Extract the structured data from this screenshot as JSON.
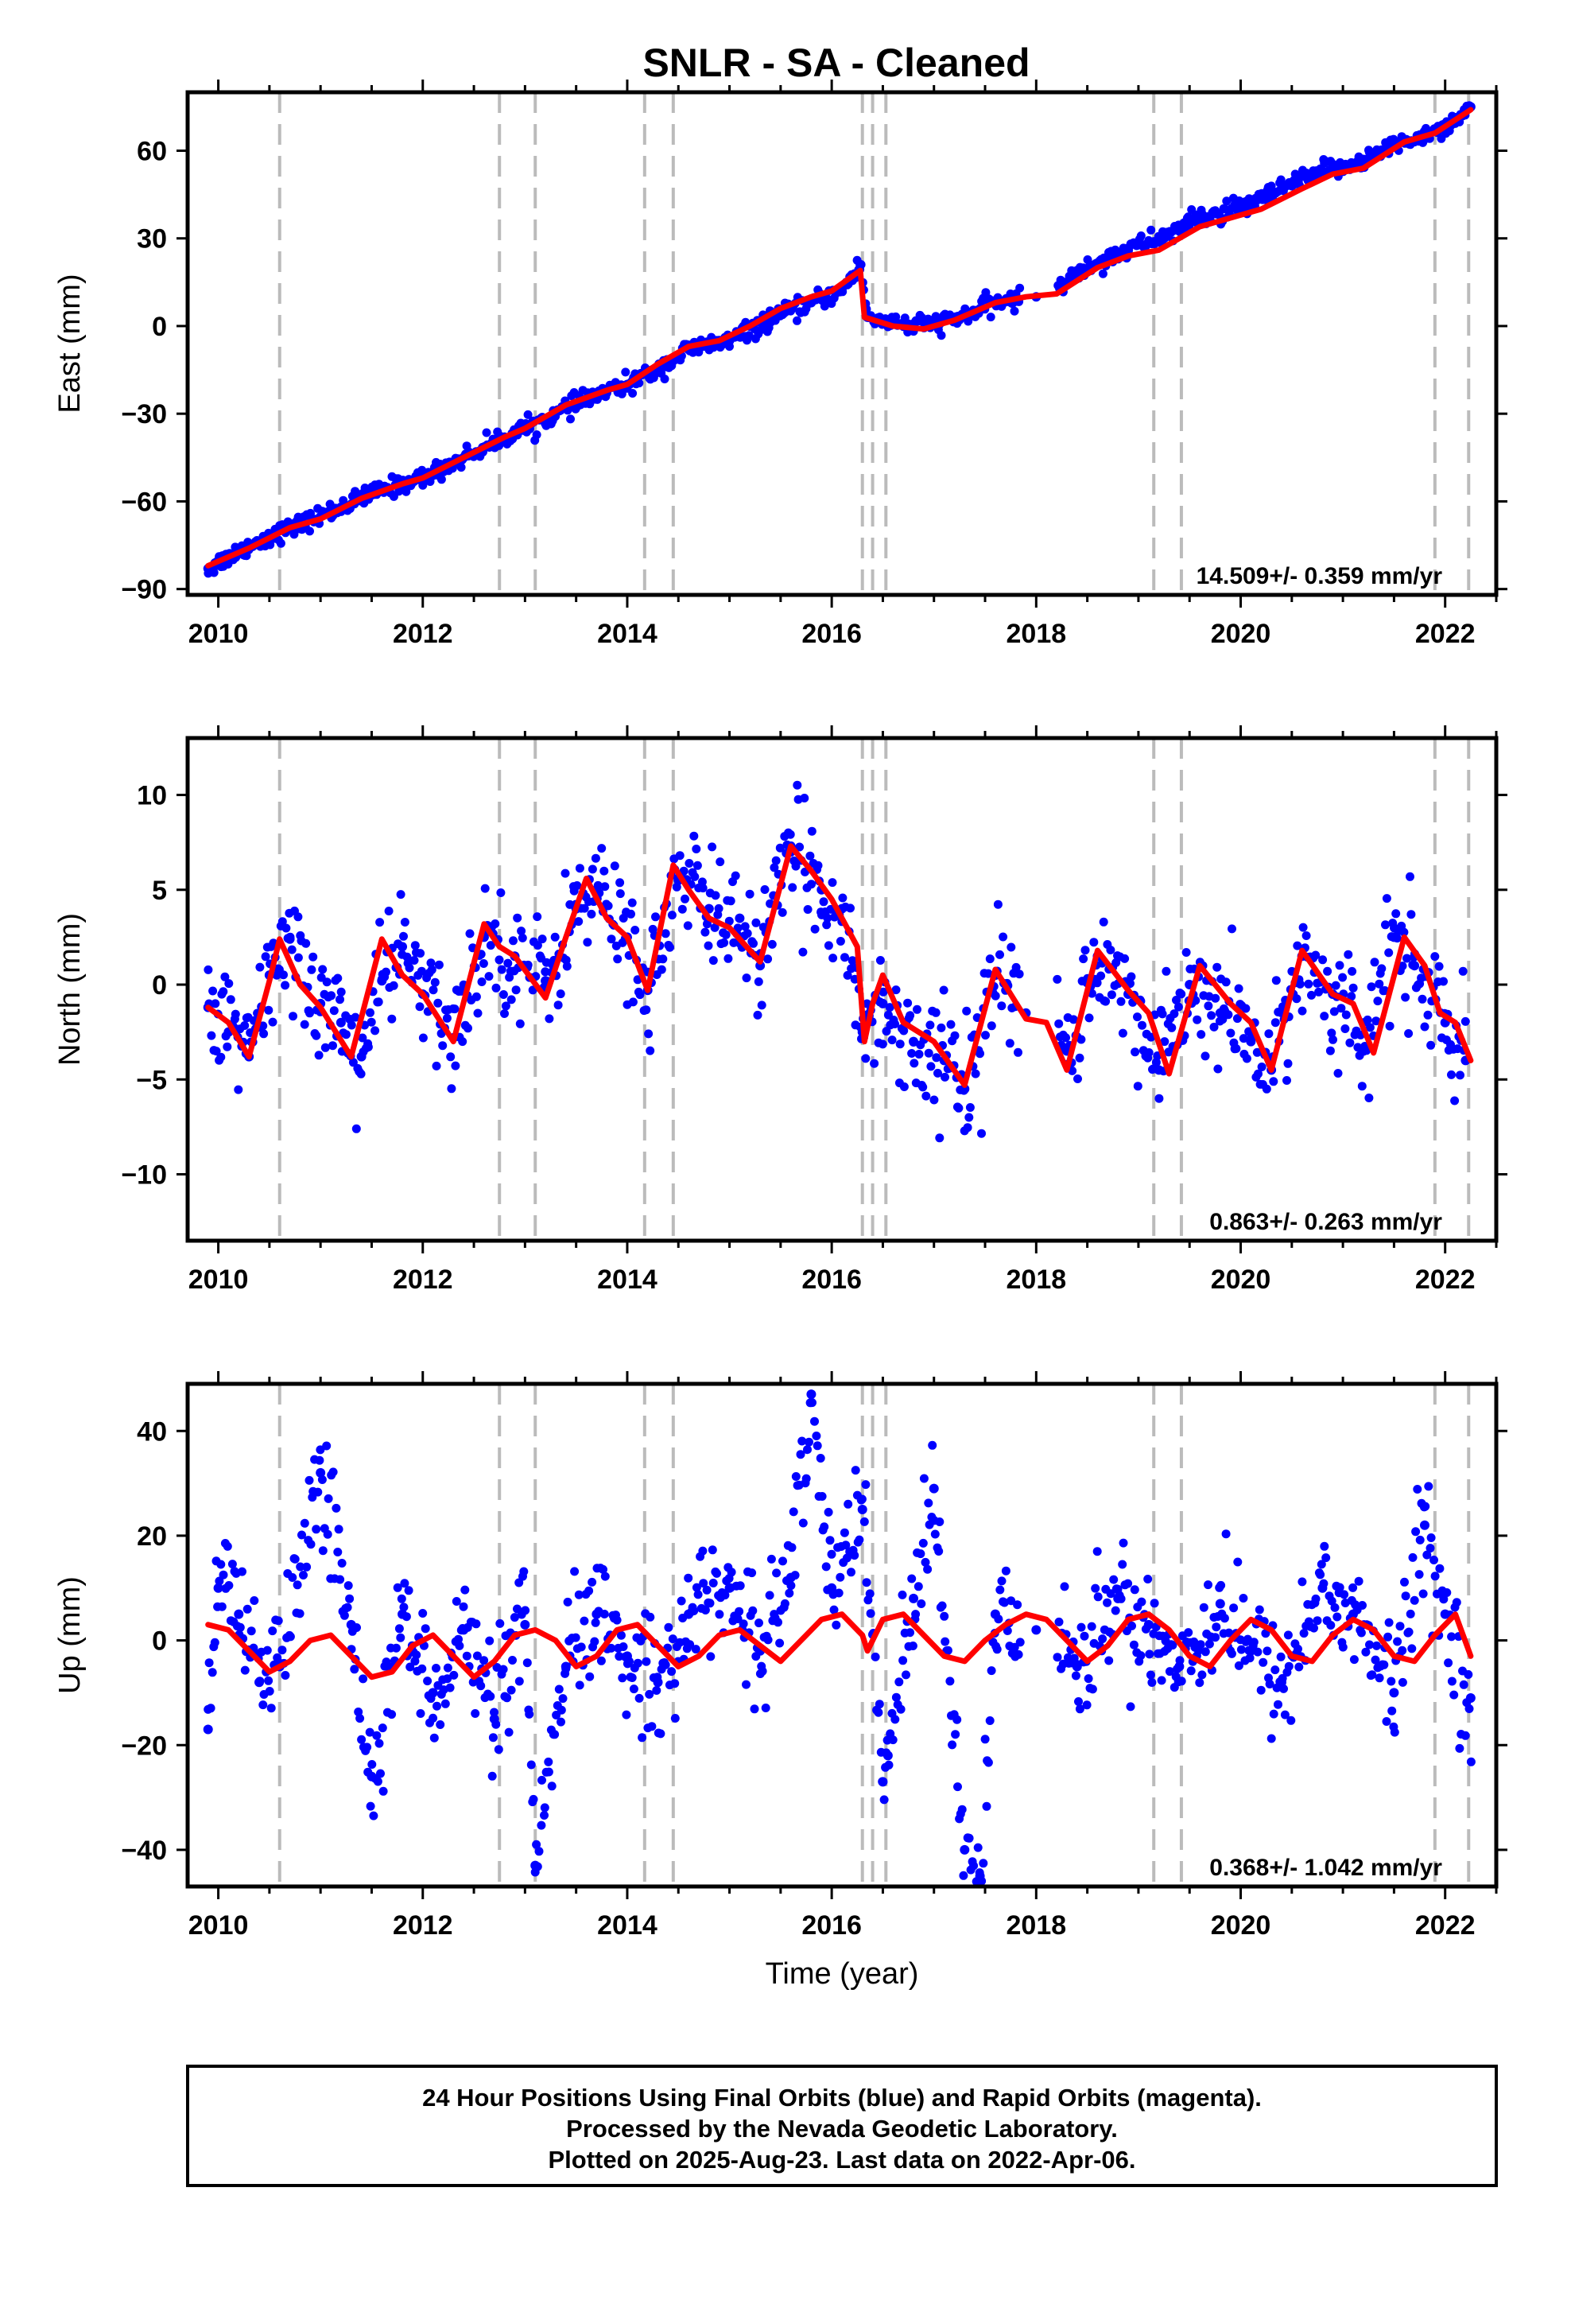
{
  "title": "SNLR  - SA - Cleaned",
  "colors": {
    "final_orbits": "#0000ff",
    "model": "#ff0000",
    "event_lines": "#bbbbbb",
    "frame": "#000000"
  },
  "chart_data": [
    {
      "type": "scatter",
      "name": "east",
      "ylabel": "East (mm)",
      "xlabel": "",
      "xlim": [
        2009.7,
        2022.5
      ],
      "ylim": [
        -92,
        80
      ],
      "xticks": [
        2010,
        2012,
        2014,
        2016,
        2018,
        2020,
        2022
      ],
      "xtick_labels": [
        "2010",
        "2012",
        "2014",
        "2016",
        "2018",
        "2020",
        "2022"
      ],
      "yticks": [
        -90,
        -60,
        -30,
        0,
        30,
        60
      ],
      "ytick_labels": [
        "−90",
        "−60",
        "−30",
        "0",
        "30",
        "60"
      ],
      "rate_label": "14.509+/- 0.359 mm/yr",
      "event_lines": [
        2010.6,
        2012.75,
        2013.1,
        2014.17,
        2014.45,
        2016.3,
        2016.4,
        2016.53,
        2019.15,
        2019.42,
        2021.9,
        2022.23
      ],
      "series": [
        {
          "name": "",
          "color": "#0000ff",
          "x": [
            2009.9,
            2010.2,
            2010.5,
            2010.8,
            2011.2,
            2011.6,
            2012.0,
            2012.4,
            2012.8,
            2013.2,
            2013.6,
            2014.0,
            2014.3,
            2014.6,
            2015.0,
            2015.4,
            2015.8,
            2016.1,
            2016.28,
            2016.35,
            2016.8,
            2017.2,
            2017.6,
            2018.0,
            2018.4,
            2018.8,
            2019.2,
            2019.6,
            2020.0,
            2020.4,
            2020.8,
            2021.2,
            2021.6,
            2022.0,
            2022.25
          ],
          "y": [
            -83,
            -77,
            -72,
            -68,
            -62,
            -56,
            -52,
            -45,
            -38,
            -32,
            -25,
            -20,
            -15,
            -8,
            -5,
            2,
            8,
            12,
            21,
            3,
            0,
            2,
            8,
            10,
            18,
            25,
            30,
            37,
            40,
            47,
            53,
            57,
            63,
            68,
            75
          ]
        },
        {
          "name": "",
          "color": "#ff0000",
          "x": [
            2009.9,
            2010.3,
            2010.7,
            2011.0,
            2011.4,
            2011.8,
            2012.0,
            2012.4,
            2012.8,
            2013.0,
            2013.4,
            2013.8,
            2014.0,
            2014.3,
            2014.6,
            2014.9,
            2015.2,
            2015.5,
            2015.8,
            2016.0,
            2016.28,
            2016.32,
            2016.6,
            2016.9,
            2017.2,
            2017.6,
            2017.9,
            2018.2,
            2018.6,
            2018.9,
            2019.2,
            2019.6,
            2019.9,
            2020.2,
            2020.6,
            2020.9,
            2021.2,
            2021.6,
            2021.9,
            2022.25
          ],
          "y": [
            -82,
            -76,
            -69,
            -66,
            -59,
            -54,
            -52,
            -45,
            -38,
            -35,
            -27,
            -22,
            -20,
            -13,
            -7,
            -5,
            0,
            6,
            10,
            12,
            19,
            3,
            0,
            -1,
            2,
            8,
            10,
            11,
            20,
            24,
            26,
            34,
            37,
            40,
            47,
            52,
            54,
            63,
            66,
            74
          ]
        }
      ]
    },
    {
      "type": "scatter",
      "name": "north",
      "ylabel": "North (mm)",
      "xlabel": "",
      "xlim": [
        2009.7,
        2022.5
      ],
      "ylim": [
        -13.5,
        13
      ],
      "xticks": [
        2010,
        2012,
        2014,
        2016,
        2018,
        2020,
        2022
      ],
      "xtick_labels": [
        "2010",
        "2012",
        "2014",
        "2016",
        "2018",
        "2020",
        "2022"
      ],
      "yticks": [
        -10,
        -5,
        0,
        5,
        10
      ],
      "ytick_labels": [
        "−10",
        "−5",
        "0",
        "5",
        "10"
      ],
      "rate_label": "0.863+/- 0.263 mm/yr",
      "event_lines": [
        2010.6,
        2012.75,
        2013.1,
        2014.17,
        2014.45,
        2016.3,
        2016.4,
        2016.53,
        2019.15,
        2019.42,
        2021.9,
        2022.23
      ],
      "series": [
        {
          "name": "",
          "color": "#0000ff",
          "x": [
            2009.9,
            2010.1,
            2010.3,
            2010.5,
            2010.7,
            2011.0,
            2011.2,
            2011.4,
            2011.6,
            2011.8,
            2012.0,
            2012.3,
            2012.6,
            2012.9,
            2013.2,
            2013.5,
            2013.7,
            2014.0,
            2014.2,
            2014.5,
            2014.8,
            2015.1,
            2015.3,
            2015.6,
            2015.9,
            2016.1,
            2016.3,
            2016.5,
            2016.8,
            2017.1,
            2017.3,
            2017.6,
            2017.9,
            2018.3,
            2018.6,
            2018.9,
            2019.2,
            2019.5,
            2019.8,
            2020.1,
            2020.3,
            2020.6,
            2020.9,
            2021.2,
            2021.5,
            2021.7,
            2022.0,
            2022.2
          ],
          "y": [
            -1.2,
            -2.5,
            -3.8,
            0.5,
            2.4,
            -1.0,
            -2.0,
            -3.8,
            0.2,
            2.0,
            -0.5,
            -2.8,
            2.5,
            1.5,
            0.2,
            4.0,
            5.0,
            2.5,
            -0.3,
            5.5,
            4.0,
            3.5,
            1.0,
            7.0,
            5.0,
            4.0,
            -2.5,
            -1.0,
            -3.0,
            -4.0,
            -5.5,
            0.5,
            -1.5,
            -3.5,
            1.5,
            -0.5,
            -4.5,
            0.0,
            -1.5,
            -3.0,
            -4.5,
            1.5,
            -0.5,
            -3.5,
            2.5,
            1.0,
            -2.0,
            -4.0
          ]
        },
        {
          "name": "",
          "color": "#ff0000",
          "x": [
            2009.9,
            2010.1,
            2010.3,
            2010.5,
            2010.6,
            2010.8,
            2011.0,
            2011.3,
            2011.6,
            2011.8,
            2012.0,
            2012.3,
            2012.6,
            2012.75,
            2012.9,
            2013.2,
            2013.4,
            2013.6,
            2013.8,
            2014.0,
            2014.2,
            2014.45,
            2014.6,
            2014.8,
            2015.0,
            2015.3,
            2015.6,
            2015.8,
            2016.0,
            2016.25,
            2016.32,
            2016.4,
            2016.5,
            2016.7,
            2017.0,
            2017.3,
            2017.6,
            2017.9,
            2018.1,
            2018.3,
            2018.6,
            2018.9,
            2019.1,
            2019.3,
            2019.6,
            2019.9,
            2020.1,
            2020.3,
            2020.6,
            2020.9,
            2021.1,
            2021.3,
            2021.6,
            2021.8,
            2021.95,
            2022.1,
            2022.25
          ],
          "y": [
            -1.2,
            -2.0,
            -3.8,
            0.2,
            2.4,
            0.0,
            -1.2,
            -3.8,
            2.4,
            0.5,
            -0.5,
            -3.0,
            3.2,
            2.0,
            1.5,
            -0.7,
            2.5,
            5.6,
            3.5,
            2.5,
            -0.3,
            6.3,
            5.0,
            3.5,
            3.0,
            1.2,
            7.3,
            6.0,
            4.5,
            2.0,
            -3.0,
            -1.0,
            0.5,
            -2.0,
            -3.0,
            -5.3,
            0.8,
            -1.8,
            -2.0,
            -4.5,
            1.8,
            -0.3,
            -1.5,
            -4.7,
            1.0,
            -1.0,
            -2.0,
            -4.5,
            1.8,
            -0.5,
            -1.0,
            -3.6,
            2.5,
            1.0,
            -1.5,
            -2.0,
            -4.0
          ]
        }
      ]
    },
    {
      "type": "scatter",
      "name": "up",
      "ylabel": "Up (mm)",
      "xlabel": "Time (year)",
      "xlim": [
        2009.7,
        2022.5
      ],
      "ylim": [
        -47,
        49
      ],
      "xticks": [
        2010,
        2012,
        2014,
        2016,
        2018,
        2020,
        2022
      ],
      "xtick_labels": [
        "2010",
        "2012",
        "2014",
        "2016",
        "2018",
        "2020",
        "2022"
      ],
      "yticks": [
        -40,
        -20,
        0,
        20,
        40
      ],
      "ytick_labels": [
        "−40",
        "−20",
        "0",
        "20",
        "40"
      ],
      "rate_label": "0.368+/- 1.042 mm/yr",
      "event_lines": [
        2010.6,
        2012.75,
        2013.1,
        2014.17,
        2014.45,
        2016.3,
        2016.4,
        2016.53,
        2019.15,
        2019.42,
        2021.9,
        2022.23
      ],
      "series": [
        {
          "name": "",
          "color": "#0000ff",
          "x": [
            2009.9,
            2010.0,
            2010.2,
            2010.4,
            2010.6,
            2011.0,
            2011.3,
            2011.5,
            2011.8,
            2012.1,
            2012.4,
            2012.7,
            2013.0,
            2013.1,
            2013.4,
            2013.7,
            2014.0,
            2014.3,
            2014.6,
            2015.0,
            2015.3,
            2015.6,
            2015.8,
            2016.0,
            2016.3,
            2016.5,
            2016.55,
            2016.8,
            2017.0,
            2017.3,
            2017.45,
            2017.6,
            2018.0,
            2018.4,
            2018.8,
            2019.1,
            2019.4,
            2019.8,
            2020.1,
            2020.4,
            2020.8,
            2021.1,
            2021.5,
            2021.8,
            2022.0,
            2022.25
          ],
          "y": [
            -17,
            10,
            5,
            -8,
            -5,
            32,
            3,
            -26,
            5,
            -10,
            2,
            -15,
            3,
            -43,
            -5,
            5,
            -3,
            -8,
            5,
            10,
            -2,
            12,
            47,
            10,
            25,
            -27,
            -22,
            8,
            29,
            -40,
            -45,
            5,
            2,
            -5,
            8,
            3,
            -5,
            7,
            -2,
            -8,
            10,
            5,
            -10,
            22,
            5,
            -11
          ]
        },
        {
          "name": "",
          "color": "#ff0000",
          "x": [
            2009.9,
            2010.1,
            2010.3,
            2010.5,
            2010.7,
            2010.9,
            2011.1,
            2011.3,
            2011.5,
            2011.7,
            2011.9,
            2012.1,
            2012.3,
            2012.5,
            2012.7,
            2012.9,
            2013.1,
            2013.3,
            2013.5,
            2013.7,
            2013.9,
            2014.1,
            2014.3,
            2014.5,
            2014.7,
            2014.9,
            2015.1,
            2015.3,
            2015.5,
            2015.7,
            2015.9,
            2016.1,
            2016.3,
            2016.35,
            2016.5,
            2016.7,
            2016.9,
            2017.1,
            2017.3,
            2017.5,
            2017.7,
            2017.9,
            2018.1,
            2018.3,
            2018.5,
            2018.7,
            2018.9,
            2019.1,
            2019.3,
            2019.5,
            2019.7,
            2019.9,
            2020.1,
            2020.3,
            2020.5,
            2020.7,
            2020.9,
            2021.1,
            2021.3,
            2021.5,
            2021.7,
            2021.9,
            2022.1,
            2022.25
          ],
          "y": [
            3,
            2,
            -2,
            -6,
            -4,
            0,
            1,
            -3,
            -7,
            -6,
            -1,
            1,
            -3,
            -7,
            -4,
            1,
            2,
            0,
            -5,
            -3,
            2,
            3,
            -1,
            -5,
            -3,
            1,
            2,
            -1,
            -4,
            0,
            4,
            5,
            1,
            -2,
            4,
            5,
            1,
            -3,
            -4,
            0,
            3,
            5,
            4,
            0,
            -4,
            -1,
            4,
            5,
            2,
            -3,
            -5,
            0,
            4,
            2,
            -3,
            -4,
            1,
            4,
            2,
            -3,
            -4,
            1,
            5,
            -3
          ]
        }
      ]
    }
  ],
  "footer": {
    "line1": "24 Hour Positions Using Final Orbits (blue) and Rapid Orbits (magenta).",
    "line2": "Processed by the Nevada Geodetic Laboratory.",
    "line3": "Plotted on 2025-Aug-23. Last data on 2022-Apr-06."
  }
}
